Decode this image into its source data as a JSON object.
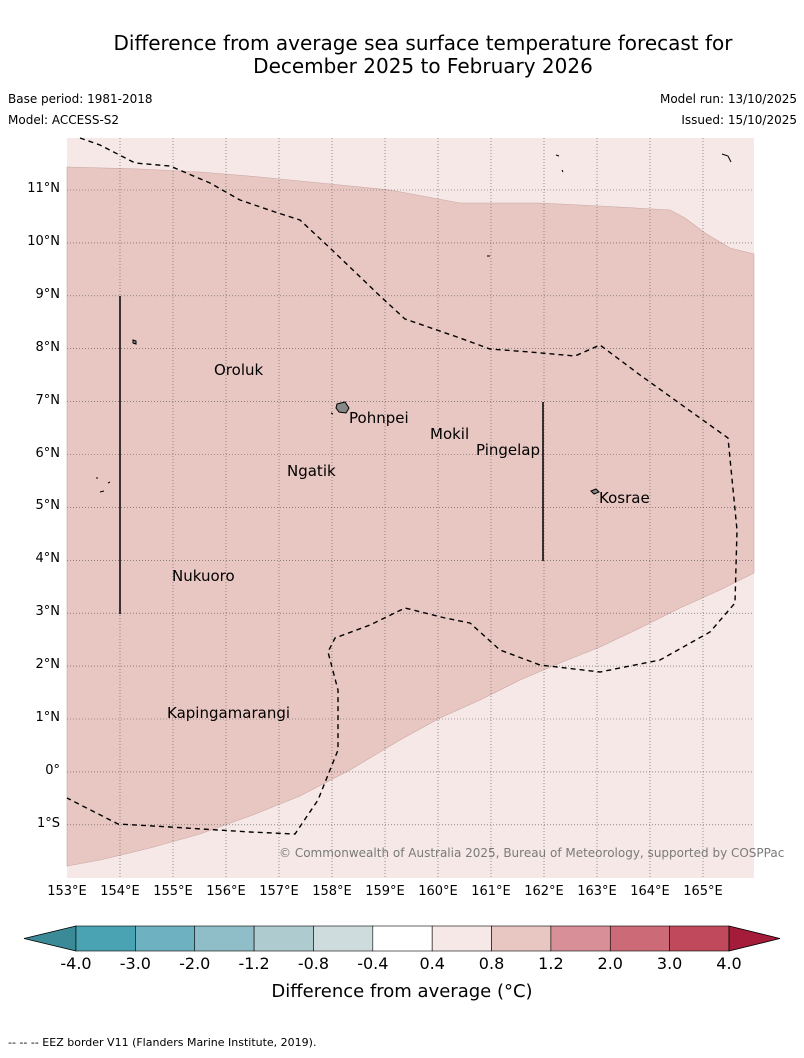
{
  "title_line1": "Difference from average sea surface temperature forecast for",
  "title_line2": "December 2025 to February 2026",
  "base_period": "Base period: 1981-2018",
  "model": "Model: ACCESS-S2",
  "model_run": "Model run: 13/10/2025",
  "issued": "Issued: 15/10/2025",
  "latitude_labels": [
    "11°N",
    "10°N",
    "9°N",
    "8°N",
    "7°N",
    "6°N",
    "5°N",
    "4°N",
    "3°N",
    "2°N",
    "1°N",
    "0°",
    "1°S"
  ],
  "longitude_labels": [
    "153°E",
    "154°E",
    "155°E",
    "156°E",
    "157°E",
    "158°E",
    "159°E",
    "160°E",
    "161°E",
    "162°E",
    "163°E",
    "164°E",
    "165°E"
  ],
  "places": {
    "oroluk": "Oroluk",
    "pohnpei": "Pohnpei",
    "mokil": "Mokil",
    "pingelap": "Pingelap",
    "ngatik": "Ngatik",
    "kosrae": "Kosrae",
    "nukuoro": "Nukuoro",
    "kapingamarangi": "Kapingamarangi"
  },
  "copyright": "© Commonwealth of Australia 2025, Bureau of Meteorology, supported by COSPPac",
  "colorbar": {
    "title": "Difference from average (°C)",
    "ticks": [
      "-4.0",
      "-3.0",
      "-2.0",
      "-1.2",
      "-0.8",
      "-0.4",
      "0.4",
      "0.8",
      "1.2",
      "2.0",
      "3.0",
      "4.0"
    ],
    "colors": [
      "#3a8a98",
      "#4aa3b3",
      "#6eb2c1",
      "#8fbdc8",
      "#aecbcf",
      "#cfdcdd",
      "#ffffff",
      "#f5e8e6",
      "#e8c7c2",
      "#d88f98",
      "#cc6b77",
      "#c04a5c",
      "#a51c3a"
    ]
  },
  "map_colors": {
    "anomaly_0p4_0p8": "#f5e8e6",
    "anomaly_0p8_1p2": "#e8c7c2",
    "eez_line": "#000000"
  },
  "footer": "--  --  -- EEZ border V11 (Flanders Marine Institute, 2019)."
}
